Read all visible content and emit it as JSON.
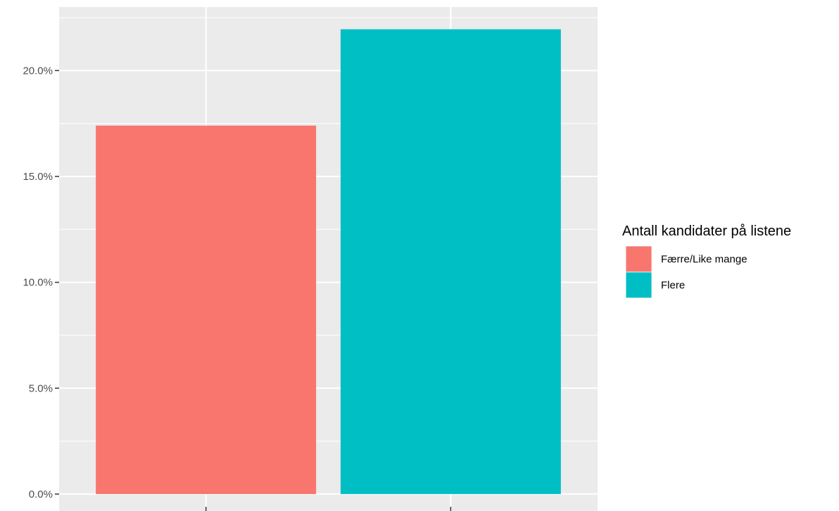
{
  "chart_data": {
    "type": "bar",
    "title": "",
    "xlabel": "",
    "ylabel": "",
    "categories": [
      "Færre/Like mange",
      "Flere"
    ],
    "values": [
      17.4,
      21.95
    ],
    "colors": [
      "#F8766D",
      "#00BFC4"
    ],
    "ylim": [
      -0.8,
      23.0
    ],
    "y_ticks": [
      0,
      5,
      10,
      15,
      20
    ],
    "y_tick_labels": [
      "0.0%",
      "5.0%",
      "10.0%",
      "15.0%",
      "20.0%"
    ],
    "grid": true,
    "legend": {
      "title": "Antall kandidater på listene",
      "position": "right",
      "entries": [
        {
          "label": "Færre/Like mange",
          "color": "#F8766D"
        },
        {
          "label": "Flere",
          "color": "#00BFC4"
        }
      ]
    },
    "panel_background": "#EBEBEB",
    "grid_color": "#FFFFFF"
  }
}
